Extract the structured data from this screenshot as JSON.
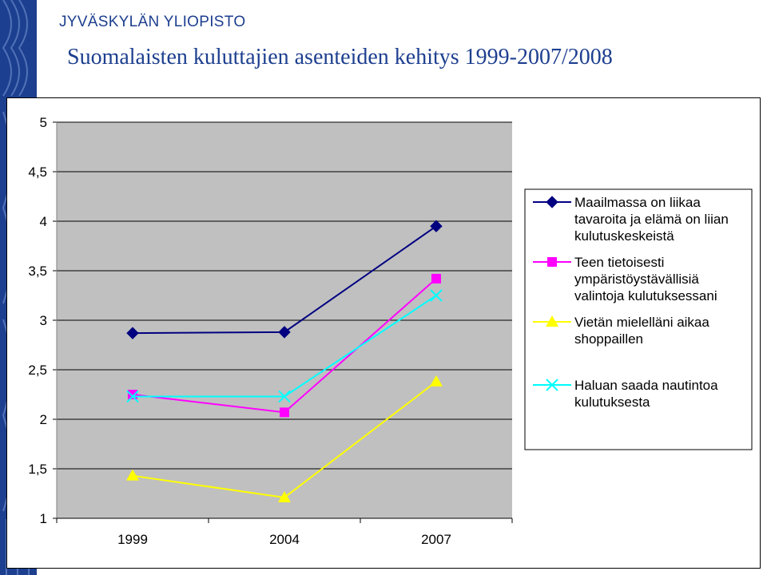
{
  "header": {
    "org": "JYVÄSKYLÄN YLIOPISTO",
    "title": "Suomalaisten kuluttajien asenteiden kehitys 1999-2007/2008"
  },
  "colors": {
    "brand": "#1d3f8f",
    "plot_bg": "#c0c0c0"
  },
  "chart_data": {
    "type": "line",
    "categories": [
      "1999",
      "2004",
      "2007"
    ],
    "ylim": [
      1,
      5
    ],
    "yticks": [
      "1",
      "1,5",
      "2",
      "2,5",
      "3",
      "3,5",
      "4",
      "4,5",
      "5"
    ],
    "grid": true,
    "legend_position": "right",
    "series": [
      {
        "name": "Maailmassa on liikaa tavaroita ja elämä on liian kulutuskeskeistä",
        "name_lines": [
          "Maailmassa on liikaa",
          "tavaroita ja elämä on liian",
          "kulutuskeskeistä"
        ],
        "values": [
          2.87,
          2.88,
          3.95
        ],
        "color": "#000080",
        "marker": "diamond"
      },
      {
        "name": "Teen tietoisesti ympäristöystävällisiä valintoja kulutuksessani",
        "name_lines": [
          "Teen tietoisesti",
          "ympäristöystävällisiä",
          "valintoja kulutuksessani"
        ],
        "values": [
          2.25,
          2.07,
          3.42
        ],
        "color": "#ff00ff",
        "marker": "square"
      },
      {
        "name": "Vietän mielelläni aikaa shoppaillen",
        "name_lines": [
          "Vietän mielelläni aikaa",
          "shoppaillen"
        ],
        "values": [
          1.43,
          1.21,
          2.38
        ],
        "color": "#ffff00",
        "marker": "triangle"
      },
      {
        "name": "Haluan saada nautintoa kulutuksesta",
        "name_lines": [
          "Haluan saada nautintoa",
          "kulutuksesta"
        ],
        "values": [
          2.23,
          2.23,
          3.25
        ],
        "color": "#00ffff",
        "marker": "x"
      }
    ]
  }
}
